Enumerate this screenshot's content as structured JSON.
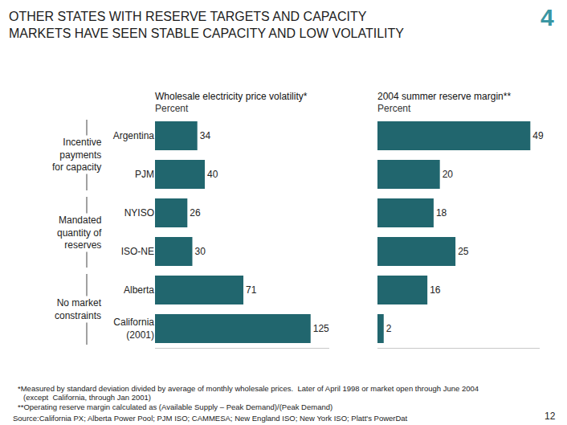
{
  "header": {
    "title": [
      "OTHER STATES WITH RESERVE TARGETS AND CAPACITY",
      "MARKETS HAVE SEEN STABLE CAPACITY AND LOW VOLATILITY"
    ],
    "number": "4"
  },
  "groups": [
    {
      "label": [
        "Incentive",
        "payments",
        "for capacity"
      ],
      "categories": [
        "Argentina",
        "PJM"
      ]
    },
    {
      "label": [
        "Mandated",
        "quantity of",
        "reserves"
      ],
      "categories": [
        "NYISO",
        "ISO-NE"
      ]
    },
    {
      "label": [
        "No market",
        "constraints"
      ],
      "categories": [
        "Alberta",
        "California (2001)"
      ]
    }
  ],
  "chart_data": [
    {
      "type": "bar",
      "title": "Wholesale electricity price volatility*",
      "subtitle": "Percent",
      "categories": [
        "Argentina",
        "PJM",
        "NYISO",
        "ISO-NE",
        "Alberta",
        "California (2001)"
      ],
      "values": [
        34,
        40,
        26,
        30,
        71,
        125
      ],
      "color": "#21666e",
      "orientation": "horizontal",
      "data_labels": true,
      "tick_labels": "y",
      "xlim": [
        0,
        140
      ],
      "xticks": []
    },
    {
      "type": "bar",
      "title": "2004 summer reserve margin**",
      "subtitle": "Percent",
      "categories": [
        "Argentina",
        "PJM",
        "NYISO",
        "ISO-NE",
        "Alberta",
        "California (2001)"
      ],
      "values": [
        49,
        20,
        18,
        25,
        16,
        2
      ],
      "color": "#21666e",
      "orientation": "horizontal",
      "data_labels": true,
      "tick_labels": false,
      "xlim": [
        0,
        52
      ],
      "xticks": []
    }
  ],
  "footnotes": [
    "*Measured by standard deviation divided by average of monthly wholesale prices.  Later of April 1998 or market open through June 2004",
    "(except  California, through Jan 2001)",
    "**Operating reserve margin calculated as (Available Supply – Peak Demand)/(Peak Demand)"
  ],
  "source": "Source:California PX; Alberta Power Pool; PJM ISO; CAMMESA; New England ISO; New York ISO; Platt's PowerDat",
  "page_number": "12"
}
